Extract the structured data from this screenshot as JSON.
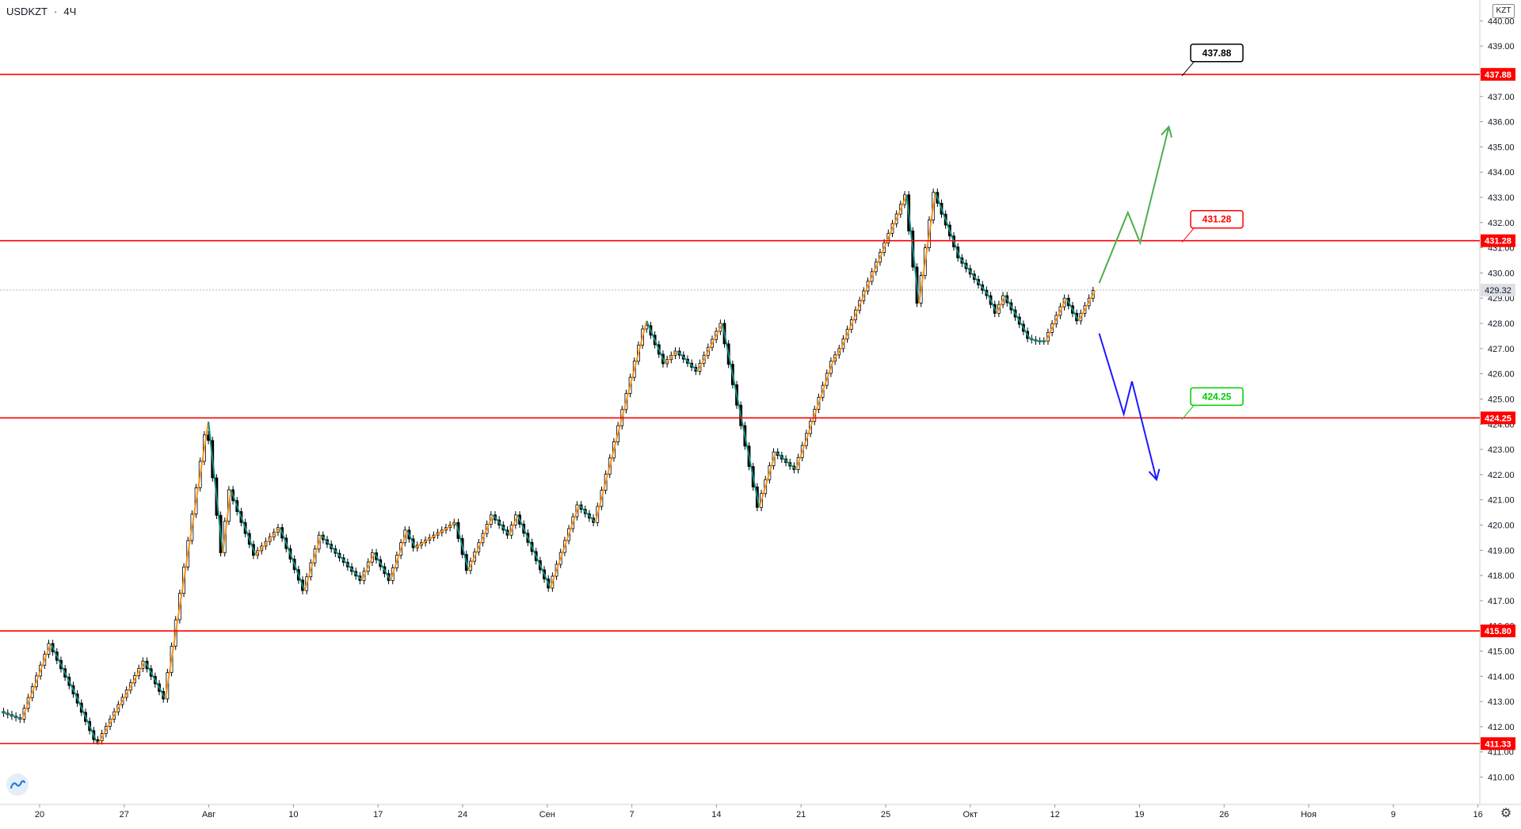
{
  "header": {
    "symbol": "USDKZT",
    "interval": "4Ч",
    "separator": "·"
  },
  "currency_badge": "KZT",
  "colors": {
    "level_line": "#ff0000",
    "zigzag_up": "#f7931e",
    "zigzag_down": "#138a7e",
    "bull_scenario": "#4caf50",
    "bear_scenario": "#1a1aff",
    "candle": "#000000",
    "axis_text": "#131722",
    "current_price_tag": "#dde1e6"
  },
  "icons": {
    "logo": "tradingview-logo-icon",
    "settings": "gear-icon"
  },
  "chart_data": {
    "type": "candlestick",
    "title": "",
    "ylabel": "KZT",
    "ylim": [
      409.2,
      440.2
    ],
    "y_ticks": [
      "410.00",
      "411.00",
      "412.00",
      "413.00",
      "414.00",
      "415.00",
      "416.00",
      "417.00",
      "418.00",
      "419.00",
      "420.00",
      "421.00",
      "422.00",
      "423.00",
      "424.00",
      "425.00",
      "426.00",
      "427.00",
      "428.00",
      "429.00",
      "430.00",
      "431.00",
      "432.00",
      "433.00",
      "434.00",
      "435.00",
      "436.00",
      "437.00",
      "438.00",
      "439.00",
      "440.00"
    ],
    "x_ticks": [
      "20",
      "27",
      "Авг",
      "10",
      "17",
      "24",
      "Сен",
      "7",
      "14",
      "21",
      "25",
      "Окт",
      "12",
      "19",
      "26",
      "Ноя",
      "9",
      "16"
    ],
    "current_price": 429.32,
    "levels": [
      {
        "label": "437.88",
        "value": 437.88,
        "callout": true,
        "callout_color": "#000000"
      },
      {
        "label": "431.28",
        "value": 431.28,
        "callout": true,
        "callout_color": "#ff0000"
      },
      {
        "label": "424.25",
        "value": 424.25,
        "callout": true,
        "callout_color": "#00cc00"
      },
      {
        "label": "415.80",
        "value": 415.8,
        "callout": false
      },
      {
        "label": "411.33",
        "value": 411.33,
        "callout": false
      }
    ],
    "zigzag": [
      {
        "x": 0,
        "y": 412.6
      },
      {
        "x": 5,
        "y": 412.3
      },
      {
        "x": 12,
        "y": 415.3
      },
      {
        "x": 18,
        "y": 413.3
      },
      {
        "x": 23.5,
        "y": 411.3
      },
      {
        "x": 35,
        "y": 414.6
      },
      {
        "x": 40,
        "y": 413.1
      },
      {
        "x": 50.5,
        "y": 424.1
      },
      {
        "x": 54,
        "y": 418.9
      },
      {
        "x": 56,
        "y": 421.4
      },
      {
        "x": 62,
        "y": 418.8
      },
      {
        "x": 68,
        "y": 419.9
      },
      {
        "x": 74,
        "y": 417.4
      },
      {
        "x": 78,
        "y": 419.6
      },
      {
        "x": 88,
        "y": 417.8
      },
      {
        "x": 91,
        "y": 418.9
      },
      {
        "x": 95,
        "y": 417.8
      },
      {
        "x": 99,
        "y": 419.8
      },
      {
        "x": 101,
        "y": 419.1
      },
      {
        "x": 111,
        "y": 420.1
      },
      {
        "x": 114,
        "y": 418.2
      },
      {
        "x": 120,
        "y": 420.4
      },
      {
        "x": 124,
        "y": 419.6
      },
      {
        "x": 126,
        "y": 420.4
      },
      {
        "x": 134,
        "y": 417.5
      },
      {
        "x": 141,
        "y": 420.8
      },
      {
        "x": 145,
        "y": 420.1
      },
      {
        "x": 157.5,
        "y": 428.1
      },
      {
        "x": 162,
        "y": 426.4
      },
      {
        "x": 165,
        "y": 426.9
      },
      {
        "x": 170,
        "y": 426.1
      },
      {
        "x": 176,
        "y": 428.0
      },
      {
        "x": 185,
        "y": 420.7
      },
      {
        "x": 189,
        "y": 422.9
      },
      {
        "x": 194,
        "y": 422.2
      },
      {
        "x": 203,
        "y": 426.5
      },
      {
        "x": 205,
        "y": 427.0
      },
      {
        "x": 221,
        "y": 433.1
      },
      {
        "x": 224,
        "y": 428.8
      },
      {
        "x": 228,
        "y": 433.2
      },
      {
        "x": 234,
        "y": 430.6
      },
      {
        "x": 241,
        "y": 429.1
      },
      {
        "x": 243,
        "y": 428.4
      },
      {
        "x": 245,
        "y": 429.1
      },
      {
        "x": 251,
        "y": 427.4
      },
      {
        "x": 253,
        "y": 427.3
      },
      {
        "x": 255,
        "y": 427.3
      },
      {
        "x": 260,
        "y": 429.0
      },
      {
        "x": 263,
        "y": 428.1
      },
      {
        "x": 267,
        "y": 429.3
      }
    ],
    "projections": [
      {
        "name": "",
        "color": "#4caf50",
        "points": [
          {
            "x": 268,
            "y": 429.6
          },
          {
            "x": 275,
            "y": 432.4
          },
          {
            "x": 278,
            "y": 431.2
          },
          {
            "x": 285,
            "y": 435.8
          }
        ],
        "arrow": true
      },
      {
        "name": "",
        "color": "#1a1aff",
        "points": [
          {
            "x": 268,
            "y": 427.6
          },
          {
            "x": 274,
            "y": 424.4
          },
          {
            "x": 276,
            "y": 425.7
          },
          {
            "x": 282,
            "y": 421.8
          }
        ],
        "arrow": true
      }
    ],
    "x_range": [
      0,
      357
    ]
  }
}
